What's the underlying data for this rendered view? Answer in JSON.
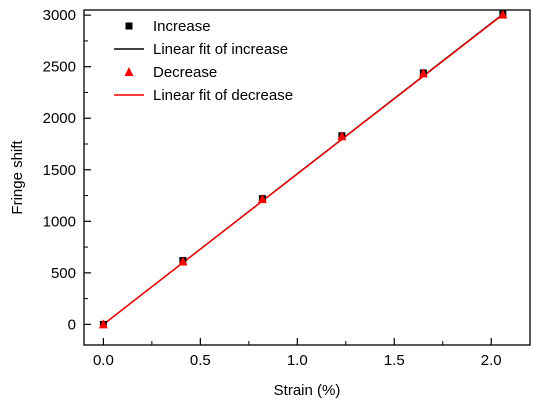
{
  "chart_data": {
    "type": "scatter",
    "xlabel": "Strain (%)",
    "ylabel": "Fringe shift",
    "xlim": [
      -0.1,
      2.2
    ],
    "ylim": [
      -200,
      3050
    ],
    "xticks": [
      0.0,
      0.5,
      1.0,
      1.5,
      2.0
    ],
    "xtick_labels": [
      "0.0",
      "0.5",
      "1.0",
      "1.5",
      "2.0"
    ],
    "yticks": [
      0,
      500,
      1000,
      1500,
      2000,
      2500,
      3000
    ],
    "ytick_labels": [
      "0",
      "500",
      "1000",
      "1500",
      "2000",
      "2500",
      "3000"
    ],
    "grid": false,
    "legend": "top-left",
    "series": [
      {
        "name": "Increase",
        "kind": "points",
        "marker": "square",
        "color": "#000000",
        "x": [
          0.0,
          0.41,
          0.82,
          1.23,
          1.65,
          2.06
        ],
        "y": [
          0,
          620,
          1220,
          1830,
          2440,
          3010
        ]
      },
      {
        "name": "Linear fit of increase",
        "kind": "line",
        "color": "#000000",
        "x": [
          0.0,
          2.06
        ],
        "y": [
          0,
          3010
        ]
      },
      {
        "name": "Decrease",
        "kind": "points",
        "marker": "triangle",
        "color": "#ff0000",
        "x": [
          0.0,
          0.41,
          0.82,
          1.23,
          1.65,
          2.06
        ],
        "y": [
          0,
          610,
          1215,
          1825,
          2435,
          3005
        ]
      },
      {
        "name": "Linear fit of decrease",
        "kind": "line",
        "color": "#ff0000",
        "x": [
          0.0,
          2.06
        ],
        "y": [
          0,
          3005
        ]
      }
    ]
  }
}
